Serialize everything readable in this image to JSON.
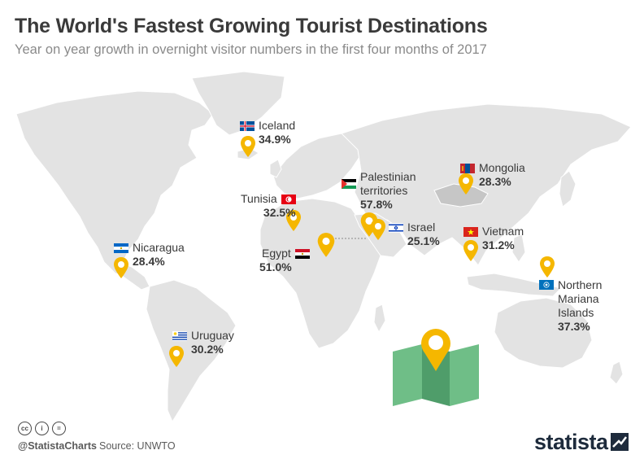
{
  "title": "The World's Fastest Growing Tourist Destinations",
  "subtitle": "Year on year growth in overnight visitor numbers in the first four months of 2017",
  "colors": {
    "land": "#e3e3e3",
    "pin": "#f5b700",
    "text": "#3a3a3a",
    "subtitle": "#8a8a8a",
    "map_icon_green": "#6fbe87",
    "map_icon_dark": "#4f9d6a"
  },
  "destinations": [
    {
      "name": "Iceland",
      "value": "34.9%",
      "flag": "iceland-flag"
    },
    {
      "name": "Palestinian territories",
      "value": "57.8%",
      "flag": "palestine-flag"
    },
    {
      "name": "Mongolia",
      "value": "28.3%",
      "flag": "mongolia-flag"
    },
    {
      "name": "Tunisia",
      "value": "32.5%",
      "flag": "tunisia-flag"
    },
    {
      "name": "Israel",
      "value": "25.1%",
      "flag": "israel-flag"
    },
    {
      "name": "Vietnam",
      "value": "31.2%",
      "flag": "vietnam-flag"
    },
    {
      "name": "Nicaragua",
      "value": "28.4%",
      "flag": "nicaragua-flag"
    },
    {
      "name": "Egypt",
      "value": "51.0%",
      "flag": "egypt-flag"
    },
    {
      "name": "Northern Mariana Islands",
      "value": "37.3%",
      "flag": "northern-mariana-flag"
    },
    {
      "name": "Uruguay",
      "value": "30.2%",
      "flag": "uruguay-flag"
    }
  ],
  "footer": {
    "cc_icons": [
      "cc-icon",
      "by-icon",
      "nd-icon"
    ],
    "cc_labels": [
      "cc",
      "i",
      "="
    ],
    "handle": "@StatistaCharts",
    "source": "Source: UNWTO",
    "brand": "statista"
  }
}
